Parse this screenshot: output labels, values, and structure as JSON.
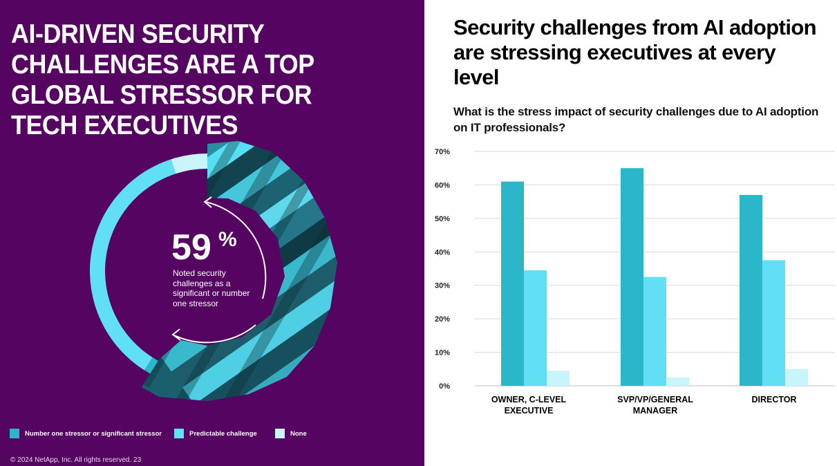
{
  "left_panel": {
    "title": "AI-DRIVEN SECURITY CHALLENGES ARE A TOP GLOBAL STRESSOR FOR TECH EXECUTIVES",
    "stat_value": "59",
    "stat_unit": "%",
    "stat_caption": "Noted security challenges as a significant or number one stressor",
    "donut_segments": [
      {
        "label": "Number one stressor or significant stressor",
        "value": 59,
        "color": "#2bb6c9"
      },
      {
        "label": "Predictable challenge",
        "value": 36,
        "color": "#61e0f5"
      },
      {
        "label": "None",
        "value": 5,
        "color": "#c8f4fb"
      }
    ],
    "legend": [
      {
        "label": "Number one stressor or significant stressor",
        "color": "#2bb6c9"
      },
      {
        "label": "Predictable challenge",
        "color": "#61e0f5"
      },
      {
        "label": "None",
        "color": "#c8f4fb"
      }
    ],
    "footer": "© 2024 NetApp, Inc. All rights reserved.  23",
    "background_color": "#560462"
  },
  "right_panel": {
    "title": "Security challenges from AI adoption are stressing executives at every level",
    "question": "What is the stress impact of security challenges due to AI adoption on IT professionals?"
  },
  "chart_data": {
    "type": "bar",
    "title": "What is the stress impact of security challenges due to AI adoption on IT professionals?",
    "categories": [
      "OWNER, C-LEVEL EXECUTIVE",
      "SVP/VP/GENERAL MANAGER",
      "DIRECTOR"
    ],
    "series": [
      {
        "name": "Number one stressor or significant stressor",
        "values": [
          61,
          65,
          57
        ],
        "color": "#2bb6c9"
      },
      {
        "name": "Predictable challenge",
        "values": [
          34.5,
          32.5,
          37.5
        ],
        "color": "#61e0f5"
      },
      {
        "name": "None",
        "values": [
          4.5,
          2.5,
          5
        ],
        "color": "#c8f4fb"
      }
    ],
    "y_ticks": [
      "0%",
      "10%",
      "20%",
      "30%",
      "40%",
      "50%",
      "60%",
      "70%"
    ],
    "ylim": [
      0,
      70
    ],
    "grid": true,
    "legend_position": "bottom-left"
  }
}
